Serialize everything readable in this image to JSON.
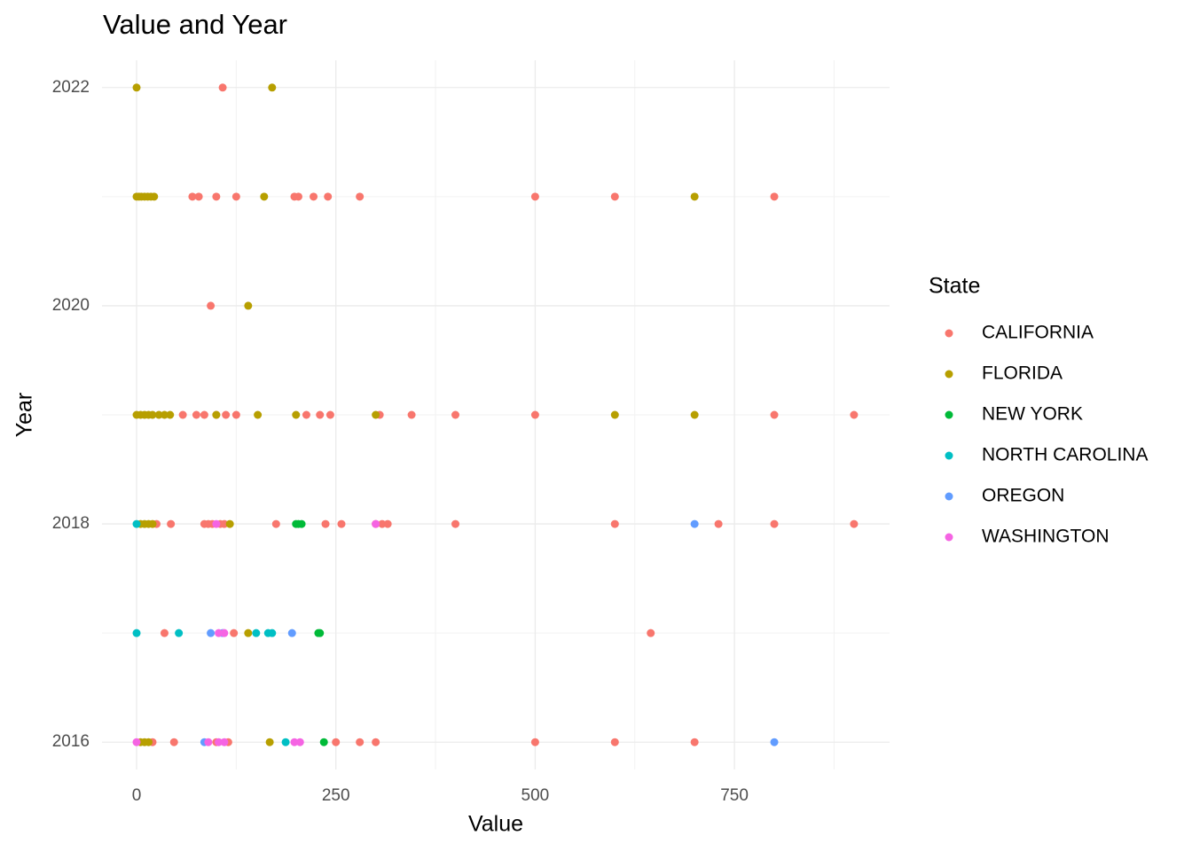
{
  "chart_data": {
    "type": "scatter",
    "title": "Value and Year",
    "x_label": "Value",
    "y_label": "Year",
    "legend_title": "State",
    "xlim": [
      -43.4,
      944.6
    ],
    "ylim": [
      2015.75,
      2022.25
    ],
    "xticks": [
      0,
      250,
      500,
      750
    ],
    "yticks": [
      2016,
      2018,
      2020,
      2022
    ],
    "grid": true,
    "series": [
      {
        "name": "CALIFORNIA",
        "color": "#f8766d",
        "x": [
          108,
          70,
          78,
          100,
          125,
          198,
          203,
          222,
          240,
          280,
          500,
          600,
          800,
          93,
          58,
          75,
          85,
          100,
          112,
          125,
          213,
          230,
          243,
          305,
          345,
          400,
          500,
          800,
          900,
          25,
          43,
          85,
          90,
          95,
          105,
          110,
          175,
          237,
          257,
          300,
          308,
          315,
          400,
          600,
          730,
          800,
          900,
          35,
          122,
          645,
          20,
          47,
          100,
          115,
          250,
          280,
          300,
          500,
          600,
          700
        ],
        "y": [
          2022,
          2021,
          2021,
          2021,
          2021,
          2021,
          2021,
          2021,
          2021,
          2021,
          2021,
          2021,
          2021,
          2020,
          2019,
          2019,
          2019,
          2019,
          2019,
          2019,
          2019,
          2019,
          2019,
          2019,
          2019,
          2019,
          2019,
          2019,
          2019,
          2018,
          2018,
          2018,
          2018,
          2018,
          2018,
          2018,
          2018,
          2018,
          2018,
          2018,
          2018,
          2018,
          2018,
          2018,
          2018,
          2018,
          2018,
          2017,
          2017,
          2017,
          2016,
          2016,
          2016,
          2016,
          2016,
          2016,
          2016,
          2016,
          2016,
          2016
        ]
      },
      {
        "name": "FLORIDA",
        "color": "#b79f00",
        "x": [
          0,
          170,
          0,
          3,
          6,
          10,
          14,
          18,
          22,
          160,
          700,
          140,
          0,
          5,
          10,
          15,
          20,
          28,
          35,
          42,
          100,
          152,
          200,
          300,
          600,
          700,
          5,
          10,
          15,
          20,
          117,
          140,
          5,
          10,
          15,
          167
        ],
        "y": [
          2022,
          2022,
          2021,
          2021,
          2021,
          2021,
          2021,
          2021,
          2021,
          2021,
          2021,
          2020,
          2019,
          2019,
          2019,
          2019,
          2019,
          2019,
          2019,
          2019,
          2019,
          2019,
          2019,
          2019,
          2019,
          2019,
          2018,
          2018,
          2018,
          2018,
          2018,
          2017,
          2016,
          2016,
          2016,
          2016
        ]
      },
      {
        "name": "NEW YORK",
        "color": "#00ba38",
        "x": [
          200,
          203,
          207,
          228,
          230,
          235
        ],
        "y": [
          2018,
          2018,
          2018,
          2017,
          2017,
          2016
        ]
      },
      {
        "name": "NORTH CAROLINA",
        "color": "#00bfc4",
        "x": [
          0,
          0,
          53,
          150,
          165,
          170,
          187
        ],
        "y": [
          2018,
          2017,
          2017,
          2017,
          2017,
          2017,
          2016
        ]
      },
      {
        "name": "OREGON",
        "color": "#619cff",
        "x": [
          700,
          93,
          108,
          195,
          85,
          800
        ],
        "y": [
          2018,
          2017,
          2017,
          2017,
          2016,
          2016
        ]
      },
      {
        "name": "WASHINGTON",
        "color": "#f564e3",
        "x": [
          100,
          300,
          103,
          110,
          0,
          90,
          103,
          110,
          198,
          205
        ],
        "y": [
          2018,
          2018,
          2017,
          2017,
          2016,
          2016,
          2016,
          2016,
          2016,
          2016
        ]
      }
    ]
  }
}
